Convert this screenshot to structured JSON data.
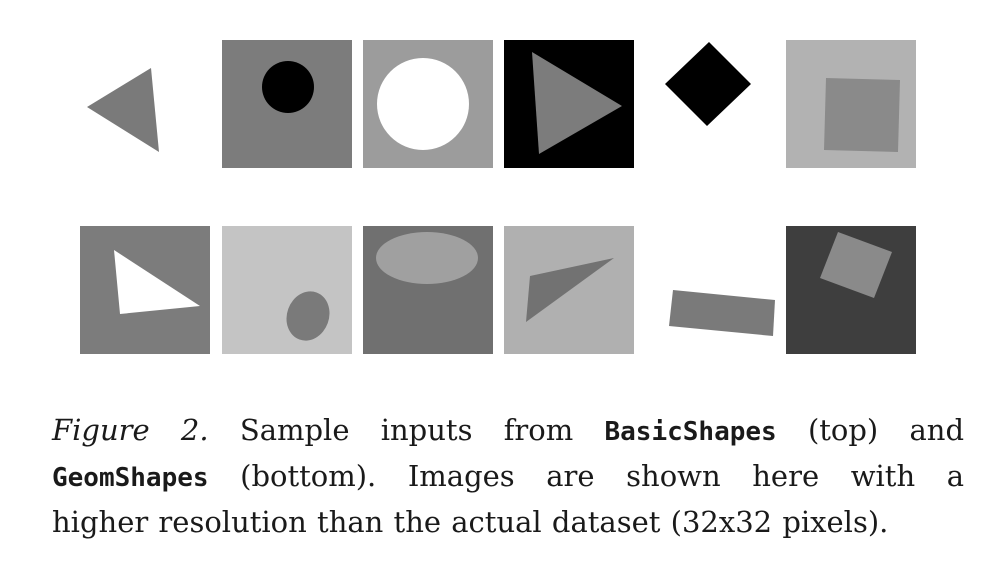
{
  "figure": {
    "rows": [
      {
        "name": "BasicShapes",
        "tiles": [
          {
            "bg": "#ffffff",
            "shape": "triangle",
            "fill": "#7a7a7a"
          },
          {
            "bg": "#7c7c7c",
            "shape": "circle",
            "fill": "#000000"
          },
          {
            "bg": "#9c9c9c",
            "shape": "circle",
            "fill": "#ffffff"
          },
          {
            "bg": "#000000",
            "shape": "triangle",
            "fill": "#7c7c7c"
          },
          {
            "bg": "#ffffff",
            "shape": "diamond",
            "fill": "#000000"
          },
          {
            "bg": "#b2b2b2",
            "shape": "square",
            "fill": "#8a8a8a"
          }
        ]
      },
      {
        "name": "GeomShapes",
        "tiles": [
          {
            "bg": "#7c7c7c",
            "shape": "triangle",
            "fill": "#ffffff"
          },
          {
            "bg": "#c4c4c4",
            "shape": "ellipse",
            "fill": "#7a7a7a"
          },
          {
            "bg": "#707070",
            "shape": "ellipse",
            "fill": "#a0a0a0"
          },
          {
            "bg": "#b0b0b0",
            "shape": "triangle",
            "fill": "#727272"
          },
          {
            "bg": "#ffffff",
            "shape": "rectangle",
            "fill": "#7a7a7a"
          },
          {
            "bg": "#3e3e3e",
            "shape": "square",
            "fill": "#8a8a8a"
          }
        ]
      }
    ]
  },
  "caption": {
    "label": "Figure 2.",
    "text_1": "Sample inputs from",
    "dataset_1": "BasicShapes",
    "text_2": "(top) and",
    "dataset_2": "GeomShapes",
    "text_3": "(bottom). Images are shown here with a",
    "text_4": "higher resolution than the actual dataset (32x32 pixels)."
  }
}
